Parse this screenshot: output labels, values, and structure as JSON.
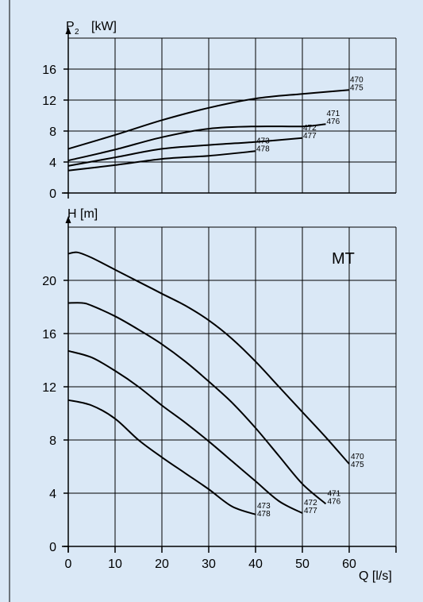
{
  "colors": {
    "panel_bg": "#dae8f6",
    "frame": "#000000",
    "curve": "#000000",
    "grid": "#000000"
  },
  "chart_data": [
    {
      "type": "line",
      "ylabel_main": "P",
      "ylabel_sub": "2",
      "ylabel_unit": "[kW]",
      "x_ticks": [
        0,
        10,
        20,
        30,
        40,
        50,
        60
      ],
      "y_ticks": [
        0,
        4,
        8,
        12,
        16
      ],
      "xlim": [
        0,
        70
      ],
      "ylim": [
        0,
        20
      ],
      "grid": true,
      "series": [
        {
          "name": "470\n475",
          "x": [
            0,
            10,
            20,
            30,
            40,
            50,
            60
          ],
          "y": [
            5.7,
            7.5,
            9.4,
            11.0,
            12.2,
            12.8,
            13.3
          ]
        },
        {
          "name": "471\n476",
          "x": [
            0,
            10,
            20,
            30,
            40,
            50,
            55
          ],
          "y": [
            4.2,
            5.6,
            7.2,
            8.3,
            8.6,
            8.6,
            8.9
          ]
        },
        {
          "name": "472\n477",
          "x": [
            0,
            10,
            20,
            30,
            40,
            50
          ],
          "y": [
            3.5,
            4.6,
            5.7,
            6.2,
            6.6,
            7.1
          ]
        },
        {
          "name": "473\n478",
          "x": [
            0,
            10,
            20,
            30,
            40
          ],
          "y": [
            2.9,
            3.6,
            4.4,
            4.8,
            5.4
          ]
        }
      ]
    },
    {
      "type": "line",
      "title": "MT",
      "ylabel": "H [m]",
      "xlabel": "Q [l/s]",
      "x_ticks": [
        0,
        10,
        20,
        30,
        40,
        50,
        60
      ],
      "y_ticks": [
        0,
        4,
        8,
        12,
        16,
        20
      ],
      "xlim": [
        0,
        70
      ],
      "ylim": [
        0,
        24.5
      ],
      "grid": true,
      "series": [
        {
          "name": "470\n475",
          "x": [
            0,
            2,
            5,
            10,
            15,
            20,
            25,
            30,
            35,
            40,
            45,
            50,
            55,
            60
          ],
          "y": [
            22.0,
            22.1,
            21.7,
            20.8,
            19.9,
            19.0,
            18.1,
            17.0,
            15.6,
            13.9,
            12.0,
            10.1,
            8.2,
            6.2
          ]
        },
        {
          "name": "471\n476",
          "x": [
            0,
            3,
            5,
            10,
            15,
            20,
            25,
            30,
            35,
            40,
            45,
            50,
            55
          ],
          "y": [
            18.3,
            18.3,
            18.1,
            17.3,
            16.3,
            15.2,
            13.9,
            12.4,
            10.8,
            8.9,
            6.8,
            4.7,
            3.2
          ]
        },
        {
          "name": "472\n477",
          "x": [
            0,
            5,
            10,
            15,
            20,
            25,
            30,
            35,
            40,
            45,
            50
          ],
          "y": [
            14.7,
            14.2,
            13.2,
            12.0,
            10.6,
            9.3,
            7.9,
            6.4,
            4.9,
            3.4,
            2.5
          ]
        },
        {
          "name": "473\n478",
          "x": [
            0,
            5,
            10,
            15,
            20,
            25,
            30,
            35,
            40
          ],
          "y": [
            11.0,
            10.6,
            9.6,
            8.0,
            6.7,
            5.5,
            4.3,
            3.0,
            2.4
          ]
        }
      ]
    }
  ]
}
